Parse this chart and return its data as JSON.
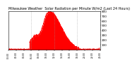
{
  "title": "Milwaukee Weather  Solar Radiation per Minute W/m2 (Last 24 Hours)",
  "bg_color": "#ffffff",
  "plot_bg_color": "#ffffff",
  "fill_color": "#ff0000",
  "line_color": "#cc0000",
  "grid_color": "#999999",
  "ylim": [
    0,
    800
  ],
  "xlim": [
    0,
    1440
  ],
  "yticks": [
    100,
    200,
    300,
    400,
    500,
    600,
    700,
    800
  ],
  "vlines": [
    360,
    720,
    1080
  ],
  "num_points": 1440,
  "title_fontsize": 3.5,
  "tick_fontsize": 3.0
}
